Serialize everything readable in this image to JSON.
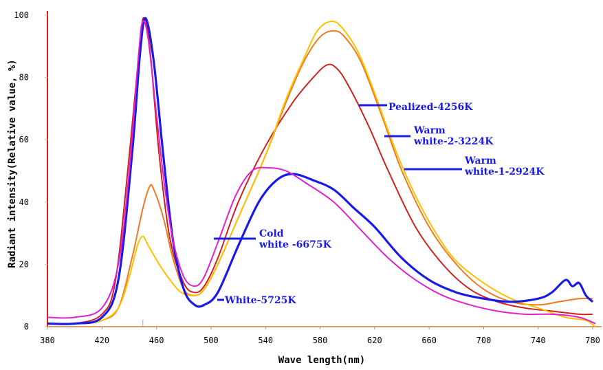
{
  "chart_data": {
    "type": "line",
    "title": "",
    "xlabel": "Wave length(nm)",
    "ylabel": "Radiant intensity(Relative value, %)",
    "xlim": [
      380,
      785
    ],
    "ylim": [
      0,
      100
    ],
    "x_ticks": [
      380,
      420,
      460,
      500,
      540,
      580,
      620,
      660,
      700,
      740,
      780
    ],
    "y_ticks": [
      0,
      20,
      40,
      60,
      80,
      100
    ],
    "grid": false,
    "series": [
      {
        "name": "Pealized-4256K",
        "color": "#cc2222",
        "points": [
          [
            380,
            1
          ],
          [
            400,
            1
          ],
          [
            420,
            4
          ],
          [
            430,
            15
          ],
          [
            440,
            55
          ],
          [
            448,
            92
          ],
          [
            451,
            99
          ],
          [
            455,
            90
          ],
          [
            462,
            55
          ],
          [
            470,
            28
          ],
          [
            480,
            14
          ],
          [
            488,
            11
          ],
          [
            495,
            13
          ],
          [
            505,
            22
          ],
          [
            520,
            40
          ],
          [
            540,
            58
          ],
          [
            560,
            72
          ],
          [
            575,
            80
          ],
          [
            585,
            84
          ],
          [
            592,
            83
          ],
          [
            600,
            78
          ],
          [
            615,
            65
          ],
          [
            630,
            50
          ],
          [
            650,
            32
          ],
          [
            670,
            20
          ],
          [
            690,
            12
          ],
          [
            710,
            8
          ],
          [
            730,
            6
          ],
          [
            750,
            5
          ],
          [
            770,
            4
          ],
          [
            780,
            4
          ]
        ]
      },
      {
        "name": "Warm white-2-3224K",
        "color": "#ee7a22",
        "points": [
          [
            380,
            1
          ],
          [
            405,
            1
          ],
          [
            420,
            2
          ],
          [
            432,
            6
          ],
          [
            442,
            22
          ],
          [
            450,
            38
          ],
          [
            455,
            45
          ],
          [
            458,
            44
          ],
          [
            465,
            35
          ],
          [
            472,
            22
          ],
          [
            480,
            12
          ],
          [
            488,
            10
          ],
          [
            495,
            12
          ],
          [
            505,
            20
          ],
          [
            520,
            35
          ],
          [
            540,
            55
          ],
          [
            555,
            72
          ],
          [
            568,
            85
          ],
          [
            580,
            93
          ],
          [
            590,
            95
          ],
          [
            598,
            93
          ],
          [
            610,
            85
          ],
          [
            625,
            68
          ],
          [
            640,
            50
          ],
          [
            660,
            32
          ],
          [
            680,
            20
          ],
          [
            700,
            12
          ],
          [
            720,
            8
          ],
          [
            740,
            7
          ],
          [
            755,
            8
          ],
          [
            770,
            9
          ],
          [
            780,
            9
          ]
        ]
      },
      {
        "name": "Warm white-1-2924K",
        "color": "#ffc000",
        "points": [
          [
            380,
            1
          ],
          [
            405,
            1
          ],
          [
            420,
            2
          ],
          [
            432,
            6
          ],
          [
            440,
            16
          ],
          [
            446,
            26
          ],
          [
            450,
            29
          ],
          [
            454,
            26
          ],
          [
            462,
            20
          ],
          [
            470,
            15
          ],
          [
            478,
            11
          ],
          [
            488,
            10
          ],
          [
            495,
            12
          ],
          [
            505,
            20
          ],
          [
            520,
            35
          ],
          [
            540,
            55
          ],
          [
            555,
            73
          ],
          [
            568,
            86
          ],
          [
            578,
            95
          ],
          [
            588,
            98
          ],
          [
            596,
            96
          ],
          [
            608,
            88
          ],
          [
            620,
            75
          ],
          [
            635,
            57
          ],
          [
            650,
            42
          ],
          [
            665,
            30
          ],
          [
            680,
            21
          ],
          [
            700,
            14
          ],
          [
            720,
            9
          ],
          [
            740,
            6
          ],
          [
            760,
            3
          ],
          [
            775,
            2
          ],
          [
            782,
            0
          ]
        ]
      },
      {
        "name": "White-5725K",
        "color": "#1a1ae6",
        "points": [
          [
            380,
            1
          ],
          [
            400,
            1
          ],
          [
            420,
            3
          ],
          [
            432,
            15
          ],
          [
            442,
            55
          ],
          [
            448,
            88
          ],
          [
            452,
            99
          ],
          [
            458,
            85
          ],
          [
            465,
            55
          ],
          [
            472,
            28
          ],
          [
            480,
            12
          ],
          [
            488,
            7
          ],
          [
            495,
            7
          ],
          [
            505,
            11
          ],
          [
            520,
            26
          ],
          [
            535,
            40
          ],
          [
            548,
            47
          ],
          [
            560,
            49
          ],
          [
            575,
            47
          ],
          [
            590,
            44
          ],
          [
            605,
            38
          ],
          [
            620,
            32
          ],
          [
            640,
            22
          ],
          [
            660,
            15
          ],
          [
            680,
            11
          ],
          [
            700,
            9
          ],
          [
            720,
            8
          ],
          [
            740,
            9
          ],
          [
            750,
            11
          ],
          [
            760,
            15
          ],
          [
            765,
            13
          ],
          [
            770,
            14
          ],
          [
            775,
            10
          ],
          [
            780,
            8
          ]
        ]
      },
      {
        "name": "Cold white-6675K",
        "color": "#e020d0",
        "points": [
          [
            380,
            3
          ],
          [
            400,
            3
          ],
          [
            420,
            6
          ],
          [
            432,
            20
          ],
          [
            440,
            50
          ],
          [
            447,
            88
          ],
          [
            450,
            98
          ],
          [
            454,
            92
          ],
          [
            460,
            68
          ],
          [
            466,
            45
          ],
          [
            472,
            28
          ],
          [
            480,
            16
          ],
          [
            488,
            13
          ],
          [
            495,
            16
          ],
          [
            505,
            27
          ],
          [
            518,
            42
          ],
          [
            530,
            50
          ],
          [
            542,
            51
          ],
          [
            555,
            50
          ],
          [
            570,
            46
          ],
          [
            590,
            40
          ],
          [
            610,
            31
          ],
          [
            630,
            22
          ],
          [
            650,
            15
          ],
          [
            670,
            10
          ],
          [
            690,
            7
          ],
          [
            710,
            5
          ],
          [
            730,
            4
          ],
          [
            750,
            4
          ],
          [
            770,
            3
          ],
          [
            782,
            1
          ]
        ]
      }
    ],
    "annotations": [
      {
        "lines": [
          "Pealized-4256K"
        ],
        "series": "Pealized-4256K"
      },
      {
        "lines": [
          "Warm",
          "white-2-3224K"
        ],
        "series": "Warm white-2-3224K"
      },
      {
        "lines": [
          "Warm",
          "white-1-2924K"
        ],
        "series": "Warm white-1-2924K"
      },
      {
        "lines": [
          "Cold",
          "white -6675K"
        ],
        "series": "Cold white-6675K"
      },
      {
        "lines": [
          "White-5725K"
        ],
        "series": "White-5725K"
      }
    ]
  }
}
